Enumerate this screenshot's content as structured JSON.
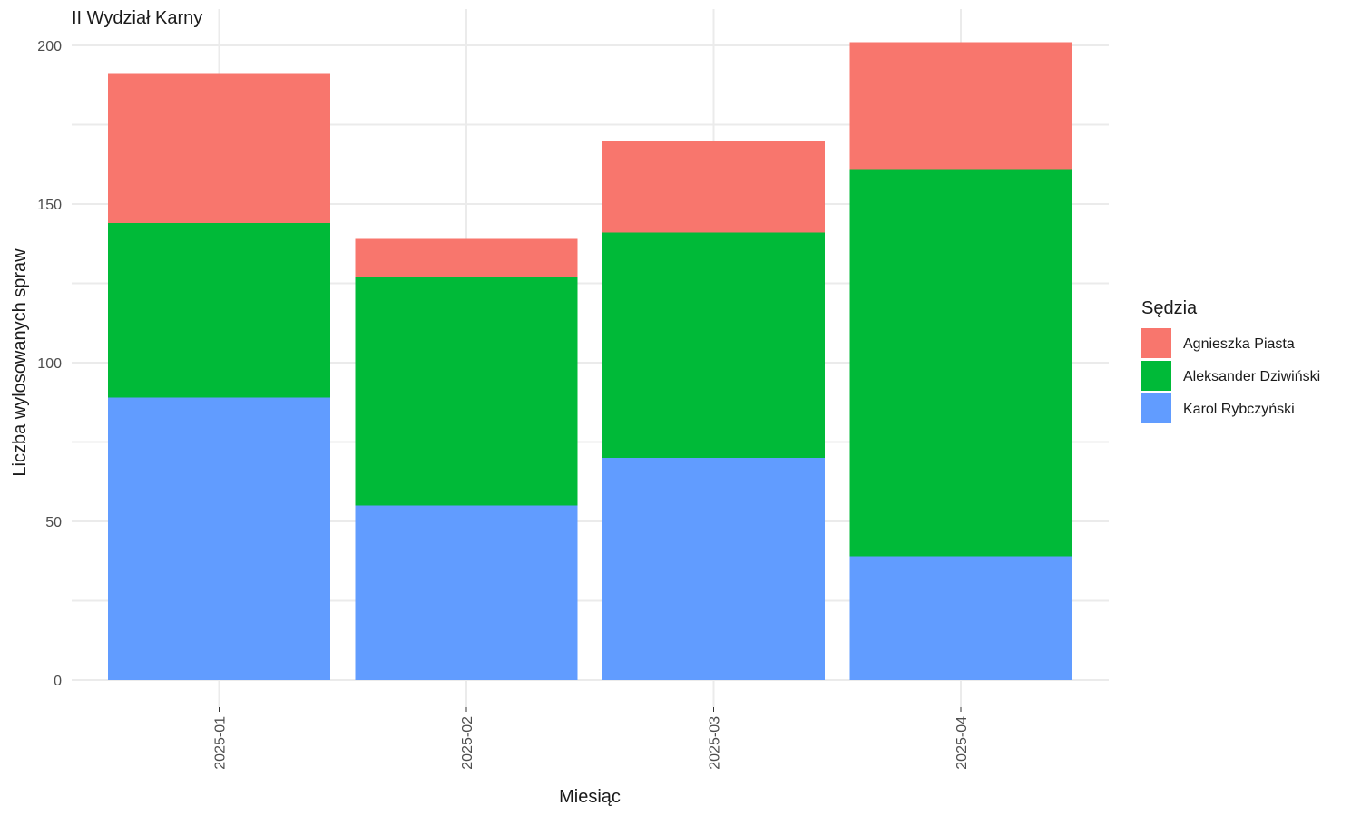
{
  "chart_data": {
    "type": "bar",
    "stacked": true,
    "title": "II Wydział Karny",
    "xlabel": "Miesiąc",
    "ylabel": "Liczba wylosowanych spraw",
    "categories": [
      "2025-01",
      "2025-02",
      "2025-03",
      "2025-04"
    ],
    "ylim": [
      0,
      210
    ],
    "yticks": [
      0,
      50,
      100,
      150,
      200
    ],
    "grid": true,
    "legend": {
      "title": "Sędzia",
      "position": "right"
    },
    "series": [
      {
        "name": "Karol Rybczyński",
        "color": "#619CFF",
        "values": [
          89,
          55,
          70,
          39
        ]
      },
      {
        "name": "Aleksander Dziwiński",
        "color": "#00BA38",
        "values": [
          55,
          72,
          71,
          122
        ]
      },
      {
        "name": "Agnieszka Piasta",
        "color": "#F8766D",
        "values": [
          47,
          12,
          29,
          40
        ]
      }
    ],
    "legend_order": [
      "Agnieszka Piasta",
      "Aleksander Dziwiński",
      "Karol Rybczyński"
    ]
  }
}
